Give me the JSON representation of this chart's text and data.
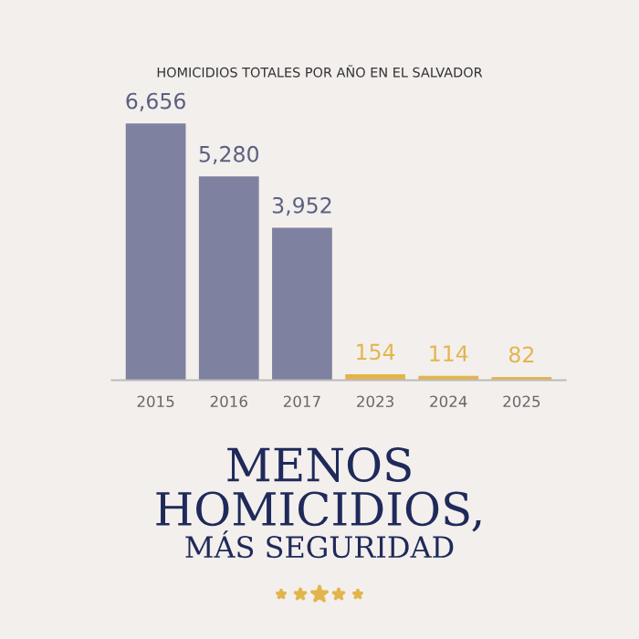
{
  "chart_data": {
    "type": "bar",
    "title": "HOMICIDIOS TOTALES POR AÑO EN EL SALVADOR",
    "subtitle": "MENOS\nHOMICIDIOS,",
    "annotations": [
      "MÁS SEGURIDAD"
    ],
    "categories": [
      "2015",
      "2016",
      "2017",
      "2023",
      "2024",
      "2025"
    ],
    "values": [
      6656,
      5280,
      3952,
      154,
      114,
      82
    ],
    "colors": [
      "#7e819f",
      "#7e819f",
      "#7e819f",
      "#e2b54c",
      "#e2b54c",
      "#e2b54c"
    ],
    "value_labels": [
      "6,656",
      "5,280",
      "3,952",
      "154",
      "114",
      "82"
    ],
    "grid": false,
    "legend": false
  }
}
